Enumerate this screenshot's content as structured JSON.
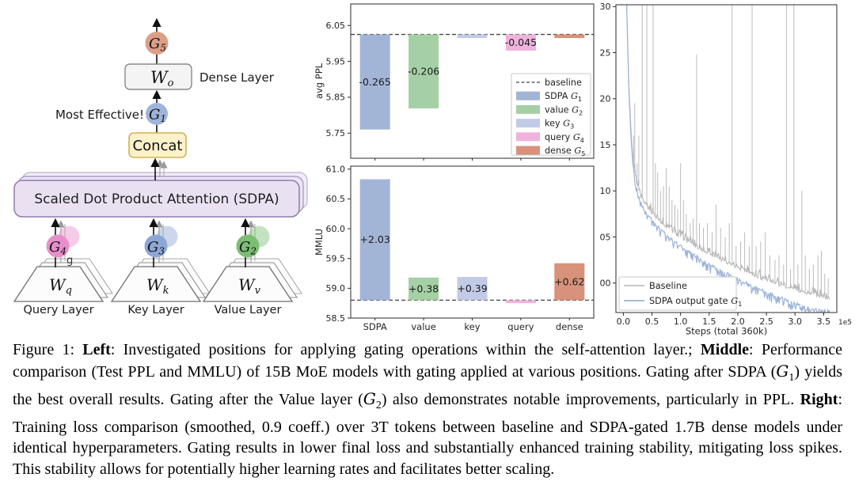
{
  "diagram": {
    "g5": {
      "base": "G",
      "sub": "5"
    },
    "wo": {
      "base": "W",
      "sub": "o"
    },
    "dense_layer_label": "Dense Layer",
    "most_effective_label": "Most Effective!",
    "g1": {
      "base": "G",
      "sub": "1"
    },
    "concat_label": "Concat",
    "sdpa_label": "Scaled Dot Product Attention (SDPA)",
    "g4": {
      "base": "G",
      "sub": "4"
    },
    "g3": {
      "base": "G",
      "sub": "3"
    },
    "g2": {
      "base": "G",
      "sub": "2"
    },
    "g4_extra_glyph": "g",
    "wq": {
      "base": "W",
      "sub": "q"
    },
    "wk": {
      "base": "W",
      "sub": "k"
    },
    "wv": {
      "base": "W",
      "sub": "v"
    },
    "query_layer_label": "Query Layer",
    "key_layer_label": "Key Layer",
    "value_layer_label": "Value Layer",
    "colors": {
      "g5": "#dd9e88",
      "g1": "#9fb4da",
      "g4": "#e78fc9",
      "g3": "#8da7d4",
      "g2": "#7cbd74",
      "sdpa_fill": "#e9e1f2",
      "sdpa_stroke": "#8f7bad",
      "concat_fill": "#fbf1ca",
      "concat_stroke": "#d0b450",
      "wo_fill": "#f4f4f4",
      "box_stroke": "#8a8a8a",
      "trap_fill": "#fcfcfc",
      "trap_stroke": "#6f6f6f"
    }
  },
  "chart_data": [
    {
      "id": "ppl",
      "type": "bar",
      "ylabel": "avg PPL",
      "ylim": [
        5.68,
        6.11
      ],
      "yticks": [
        "6.05",
        "5.95",
        "5.85",
        "5.75"
      ],
      "baseline_value": 6.025,
      "categories": [
        "SDPA",
        "value",
        "key",
        "query",
        "dense"
      ],
      "deltas": [
        -0.265,
        -0.206,
        -0.01,
        -0.045,
        -0.01
      ],
      "bar_labels": [
        "-0.265",
        "-0.206",
        "",
        "-0.045",
        ""
      ],
      "bar_colors": [
        "#a3b5d6",
        "#a5cfa4",
        "#c2cbe6",
        "#eeb3dc",
        "#d8917a"
      ],
      "baseline_color": "#444444",
      "show_x_labels": false,
      "legend": {
        "baseline_label": "baseline",
        "entries": [
          {
            "text": "SDPA ",
            "g_sub": "1",
            "color": "#a3b5d6"
          },
          {
            "text": "value ",
            "g_sub": "2",
            "color": "#a5cfa4"
          },
          {
            "text": "key ",
            "g_sub": "3",
            "color": "#c2cbe6"
          },
          {
            "text": "query ",
            "g_sub": "4",
            "color": "#eeb3dc"
          },
          {
            "text": "dense ",
            "g_sub": "5",
            "color": "#d8917a"
          }
        ]
      }
    },
    {
      "id": "mmlu",
      "type": "bar",
      "ylabel": "MMLU",
      "ylim": [
        58.5,
        61.05
      ],
      "yticks": [
        "61.0",
        "60.5",
        "60.0",
        "59.5",
        "59.0",
        "58.5"
      ],
      "baseline_value": 58.8,
      "categories": [
        "SDPA",
        "value",
        "key",
        "query",
        "dense"
      ],
      "deltas": [
        2.03,
        0.38,
        0.39,
        -0.05,
        0.62
      ],
      "bar_labels": [
        "+2.03",
        "+0.38",
        "+0.39",
        "",
        "+0.62"
      ],
      "bar_colors": [
        "#a3b5d6",
        "#a5cfa4",
        "#c2cbe6",
        "#eeb3dc",
        "#d8917a"
      ],
      "baseline_color": "#444444",
      "show_x_labels": true
    },
    {
      "id": "loss",
      "type": "line",
      "xlabel": "Steps (total 360k)",
      "x_scale_note": "1e5",
      "xlim": [
        -0.13,
        3.73
      ],
      "ylim": [
        1.968,
        2.302
      ],
      "xticks": [
        "0.0",
        "0.5",
        "1.0",
        "1.5",
        "2.0",
        "2.5",
        "3.0",
        "3.5"
      ],
      "yticks": [
        "2.30",
        "2.25",
        "2.20",
        "2.15",
        "2.10",
        "2.05",
        "2.00"
      ],
      "x": [
        0.04,
        0.06,
        0.08,
        0.1,
        0.13,
        0.16,
        0.2,
        0.25,
        0.3,
        0.36,
        0.43,
        0.5,
        0.6,
        0.7,
        0.8,
        0.9,
        1.0,
        1.1,
        1.2,
        1.3,
        1.4,
        1.5,
        1.6,
        1.7,
        1.8,
        1.9,
        2.0,
        2.1,
        2.2,
        2.3,
        2.4,
        2.5,
        2.6,
        2.7,
        2.8,
        2.9,
        3.0,
        3.1,
        3.2,
        3.3,
        3.4,
        3.5,
        3.6
      ],
      "series": [
        {
          "name": "Baseline",
          "color": "#b5b5b5",
          "y": [
            2.36,
            2.3,
            2.25,
            2.21,
            2.17,
            2.14,
            2.12,
            2.105,
            2.095,
            2.088,
            2.082,
            2.077,
            2.07,
            2.064,
            2.059,
            2.054,
            2.05,
            2.046,
            2.042,
            2.039,
            2.035,
            2.032,
            2.029,
            2.026,
            2.023,
            2.02,
            2.017,
            2.014,
            2.011,
            2.008,
            2.006,
            2.003,
            2.001,
            1.999,
            1.997,
            1.995,
            1.993,
            1.991,
            1.989,
            1.988,
            1.986,
            1.985,
            1.984
          ]
        },
        {
          "name": "SDPA output gate G",
          "name_g_sub": "1",
          "color": "#9cb2d8",
          "y": [
            2.355,
            2.295,
            2.244,
            2.203,
            2.163,
            2.133,
            2.113,
            2.098,
            2.088,
            2.08,
            2.074,
            2.069,
            2.062,
            2.056,
            2.05,
            2.045,
            2.04,
            2.036,
            2.032,
            2.028,
            2.024,
            2.021,
            2.017,
            2.014,
            2.011,
            2.008,
            2.005,
            2.002,
            1.999,
            1.996,
            1.993,
            1.99,
            1.988,
            1.985,
            1.983,
            1.98,
            1.978,
            1.976,
            1.974,
            1.972,
            1.971,
            1.97,
            1.969
          ]
        }
      ],
      "baseline_spikes": [
        [
          0.18,
          2.16
        ],
        [
          0.2,
          2.195
        ],
        [
          0.24,
          2.13
        ],
        [
          0.27,
          2.16
        ],
        [
          0.33,
          2.31
        ],
        [
          0.41,
          2.31
        ],
        [
          0.52,
          2.31
        ],
        [
          0.56,
          2.13
        ],
        [
          0.6,
          2.12
        ],
        [
          0.65,
          2.1
        ],
        [
          0.7,
          2.105
        ],
        [
          0.75,
          2.125
        ],
        [
          0.8,
          2.105
        ],
        [
          0.85,
          2.09
        ],
        [
          0.9,
          2.085
        ],
        [
          0.95,
          2.08
        ],
        [
          1.0,
          2.13
        ],
        [
          1.05,
          2.09
        ],
        [
          1.1,
          2.075
        ],
        [
          1.17,
          2.065
        ],
        [
          1.22,
          2.07
        ],
        [
          1.28,
          2.248
        ],
        [
          1.33,
          2.065
        ],
        [
          1.4,
          2.06
        ],
        [
          1.47,
          2.065
        ],
        [
          1.55,
          2.055
        ],
        [
          1.62,
          2.085
        ],
        [
          1.7,
          2.06
        ],
        [
          1.78,
          2.05
        ],
        [
          1.85,
          2.065
        ],
        [
          1.9,
          2.31
        ],
        [
          1.97,
          2.04
        ],
        [
          2.05,
          2.045
        ],
        [
          2.12,
          2.055
        ],
        [
          2.2,
          2.04
        ],
        [
          2.25,
          2.31
        ],
        [
          2.32,
          2.04
        ],
        [
          2.4,
          2.045
        ],
        [
          2.48,
          2.055
        ],
        [
          2.56,
          2.03
        ],
        [
          2.65,
          2.025
        ],
        [
          2.72,
          2.03
        ],
        [
          2.8,
          2.02
        ],
        [
          2.85,
          2.31
        ],
        [
          2.92,
          2.015
        ],
        [
          2.98,
          2.31
        ],
        [
          3.05,
          2.02
        ],
        [
          3.12,
          2.1
        ],
        [
          3.18,
          2.03
        ],
        [
          3.25,
          2.015
        ],
        [
          3.32,
          2.02
        ],
        [
          3.4,
          2.03
        ],
        [
          3.46,
          2.035
        ],
        [
          3.52,
          2.01
        ],
        [
          3.58,
          2.005
        ]
      ],
      "legend": {
        "entries": [
          {
            "text": "Baseline",
            "color": "#b5b5b5"
          },
          {
            "text": "SDPA output gate ",
            "g_sub": "1",
            "color": "#9cb2d8"
          }
        ]
      }
    }
  ],
  "caption": {
    "segments": [
      {
        "t": "Figure 1: "
      },
      {
        "t": "Left",
        "b": true
      },
      {
        "t": ": Investigated positions for applying gating operations within the self-attention layer.; "
      },
      {
        "t": "Middle",
        "b": true
      },
      {
        "t": ": Performance comparison (Test PPL and MMLU) of 15B MoE models with gating applied at various positions. Gating after SDPA ("
      },
      {
        "g": "1"
      },
      {
        "t": ") yields the best overall results. Gating after the Value layer ("
      },
      {
        "g": "2"
      },
      {
        "t": ") also demonstrates notable improvements, particularly in PPL. "
      },
      {
        "t": "Right",
        "b": true
      },
      {
        "t": ": Training loss comparison (smoothed, 0.9 coeff.) over 3T tokens between baseline and SDPA-gated 1.7B dense models under identical hyperparameters. Gating results in lower final loss and substantially enhanced training stability, mitigating loss spikes. This stability allows for potentially higher learning rates and facilitates better scaling."
      }
    ]
  }
}
